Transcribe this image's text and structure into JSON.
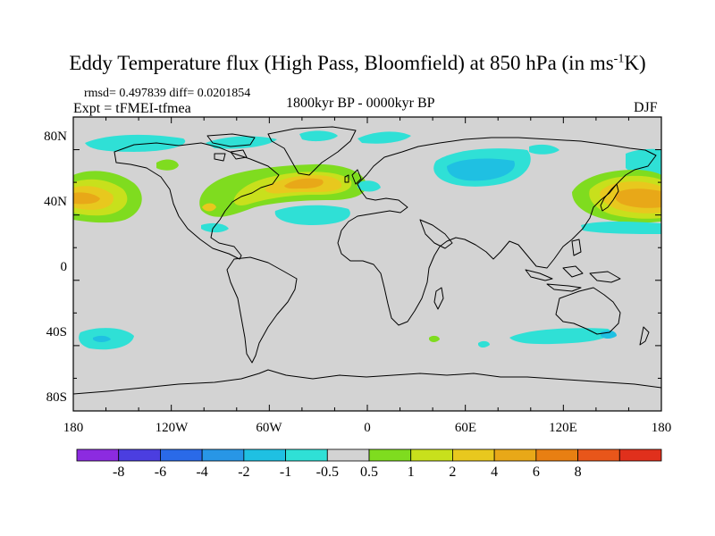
{
  "title": {
    "main": "Eddy Temperature flux (High Pass, Bloomfield) at 850 hPa (in ms",
    "sup": "-1",
    "tail": "K)"
  },
  "stats": "rmsd= 0.497839  diff= 0.0201854",
  "experiment": "Expt = tFMEI-tfmea",
  "period": "1800kyr BP - 0000kyr BP",
  "season": "DJF",
  "map": {
    "background_color": "#d3d3d3",
    "lon_ticks": [
      "180",
      "120W",
      "60W",
      "0",
      "60E",
      "120E",
      "180"
    ],
    "lat_ticks": [
      "80N",
      "40N",
      "0",
      "40S",
      "80S"
    ]
  },
  "colorbar": {
    "colors": [
      "#8c2be0",
      "#4b3ee0",
      "#2a6ae8",
      "#2896e6",
      "#1fc0e2",
      "#2fe0d6",
      "#d3d3d3",
      "#7fdc1f",
      "#c8e01c",
      "#e8c81e",
      "#e8a818",
      "#e87f12",
      "#e8561a",
      "#e0301c"
    ],
    "labels": [
      "-8",
      "-6",
      "-4",
      "-2",
      "-1",
      "-0.5",
      "0.5",
      "1",
      "2",
      "4",
      "6",
      "8"
    ]
  }
}
